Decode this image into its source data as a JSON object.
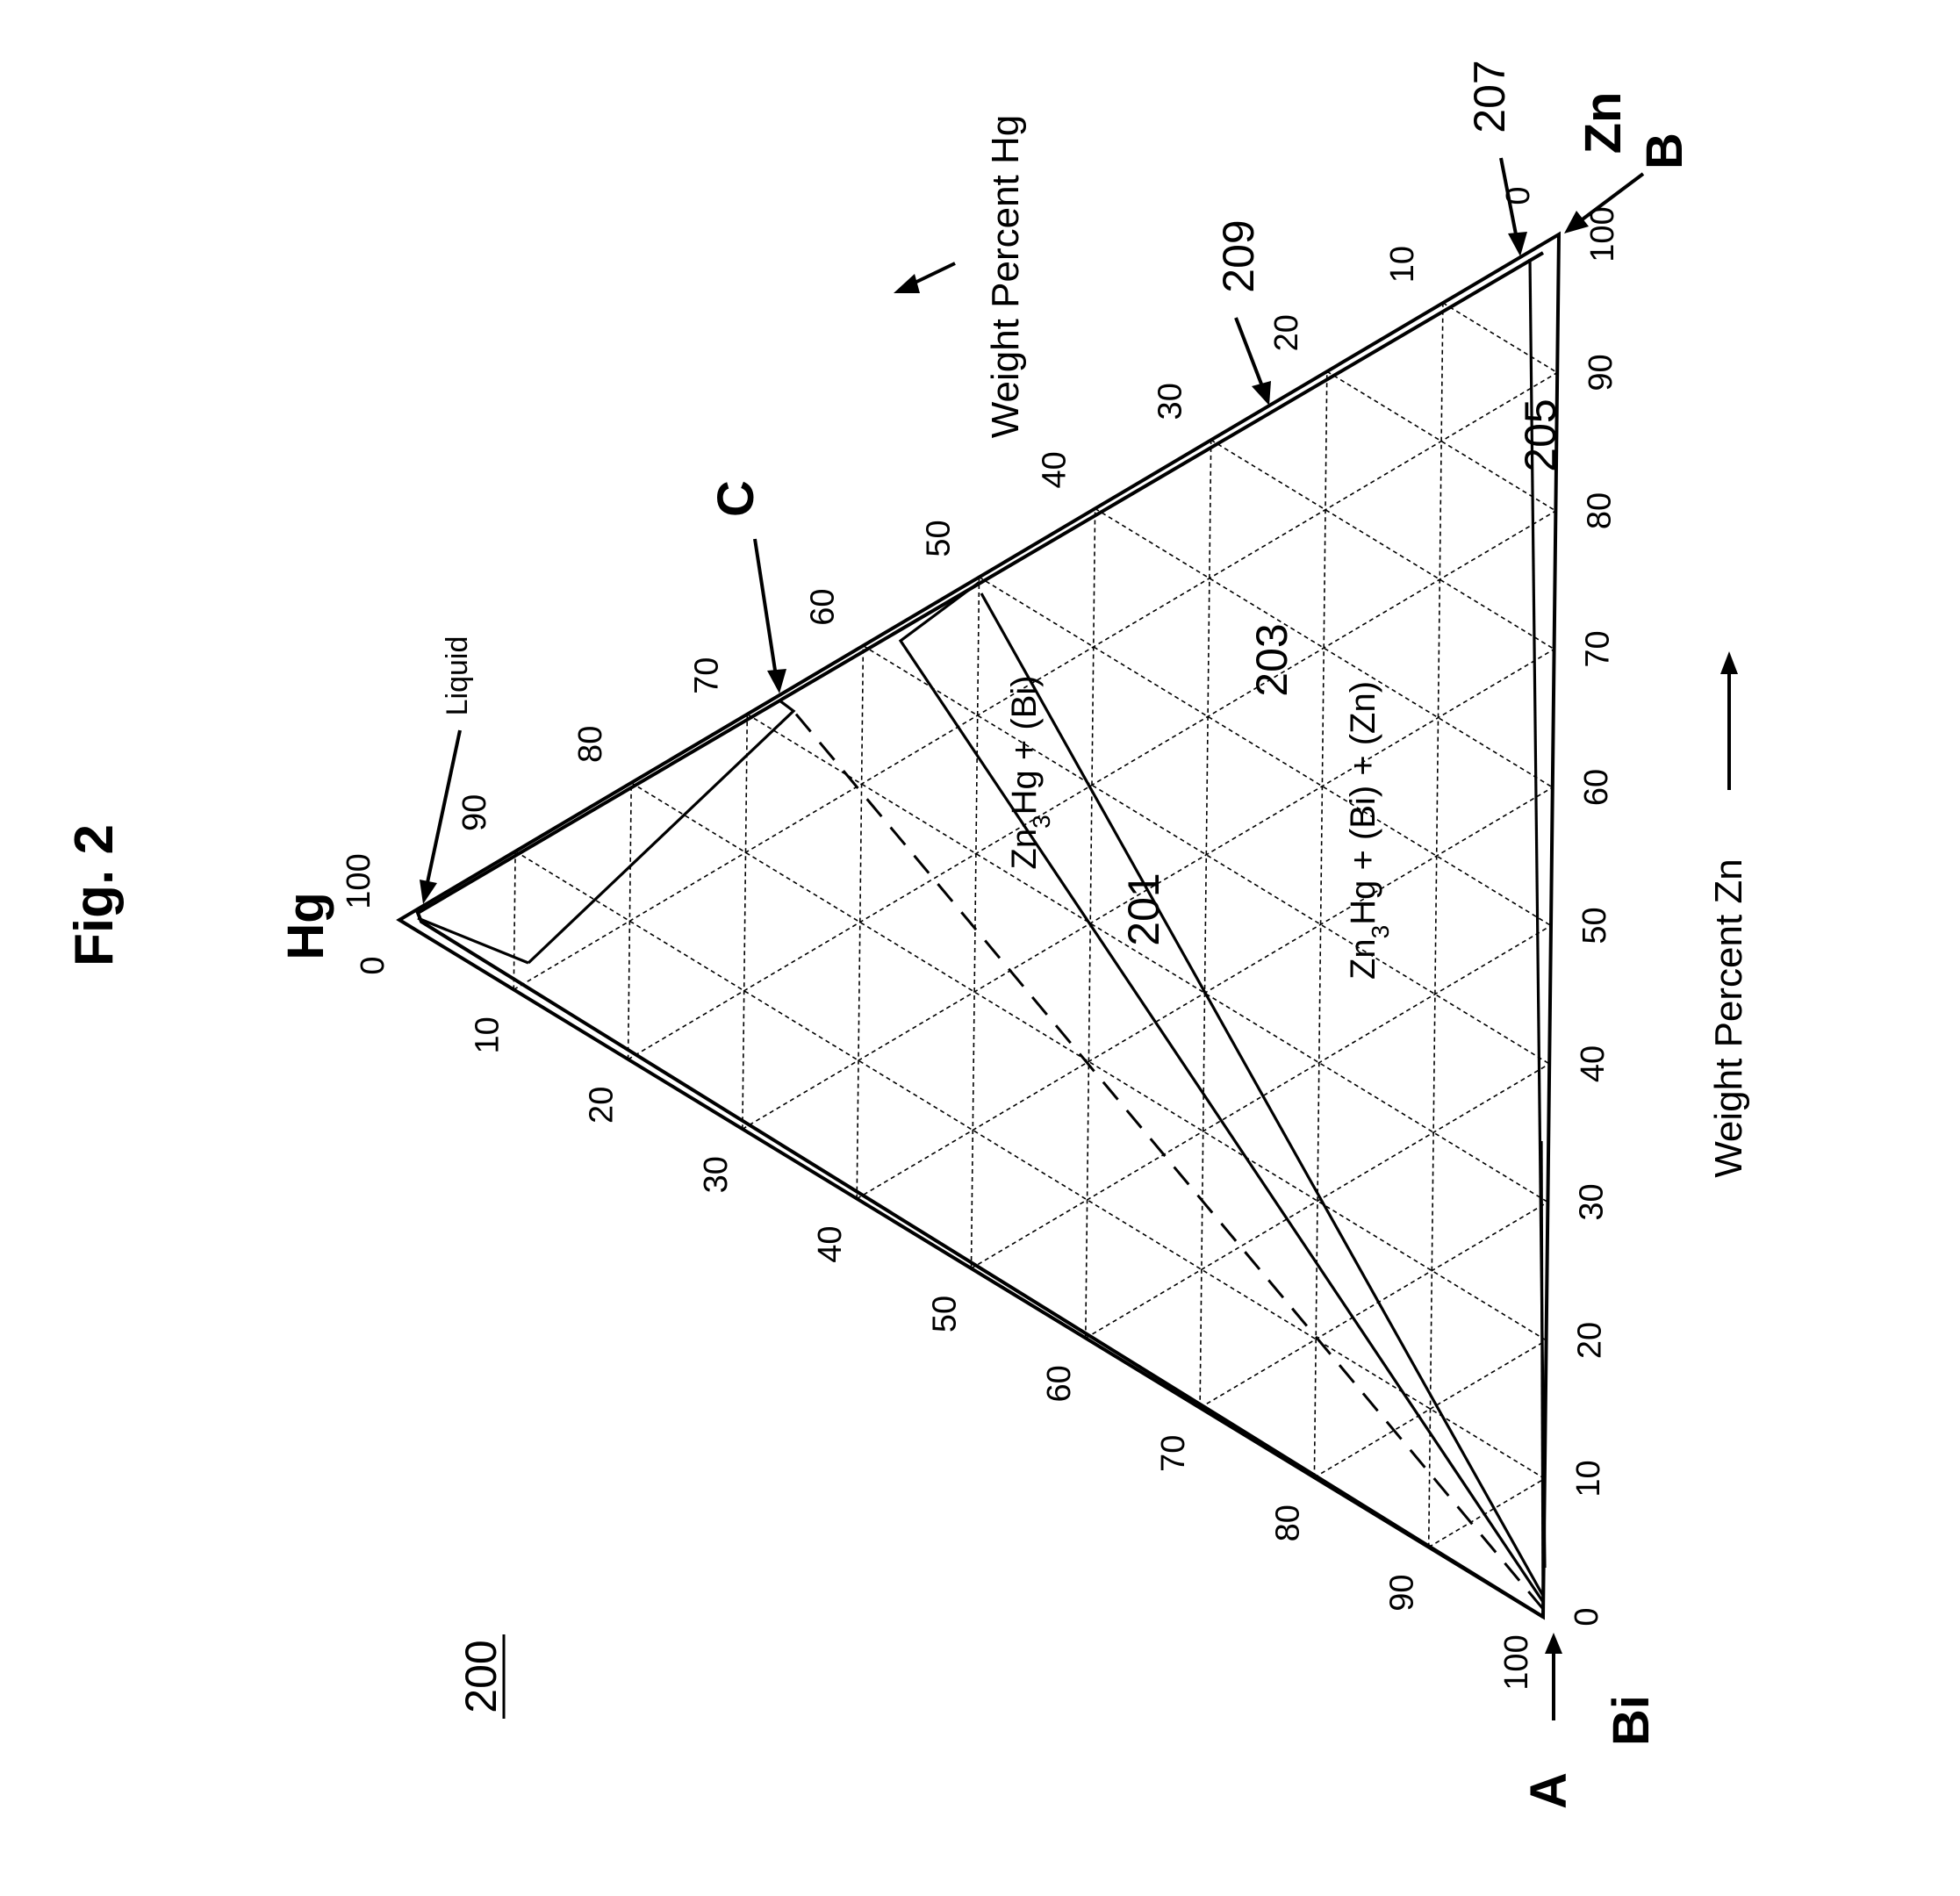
{
  "figure": {
    "title": "Fig. 2",
    "ref_number": "200",
    "vertices": {
      "top": "Hg",
      "left": "Bi",
      "right": "Zn"
    },
    "axis_labels": {
      "hg": "Weight Percent Hg",
      "zn": "Weight Percent Zn"
    },
    "ticks": {
      "left": [
        "0",
        "10",
        "20",
        "30",
        "40",
        "50",
        "60",
        "70",
        "80",
        "90",
        "100"
      ],
      "right": [
        "100",
        "90",
        "80",
        "70",
        "60",
        "50",
        "40",
        "30",
        "20",
        "10",
        "0"
      ],
      "bottom": [
        "0",
        "10",
        "20",
        "30",
        "40",
        "50",
        "60",
        "70",
        "80",
        "90",
        "100"
      ]
    },
    "regions": {
      "r1": "Zn3Hg + (Bi)",
      "r2": "Zn3Hg + (Bi) + (Zn)"
    },
    "callouts": {
      "liquid": "Liquid",
      "a": "A",
      "b": "B",
      "c": "C",
      "n201": "201",
      "n203": "203",
      "n205": "205",
      "n207": "207",
      "n209": "209"
    }
  },
  "chart_data": {
    "type": "ternary",
    "components": [
      "Hg",
      "Bi",
      "Zn"
    ],
    "units": "weight percent",
    "grid_step": 10
  }
}
